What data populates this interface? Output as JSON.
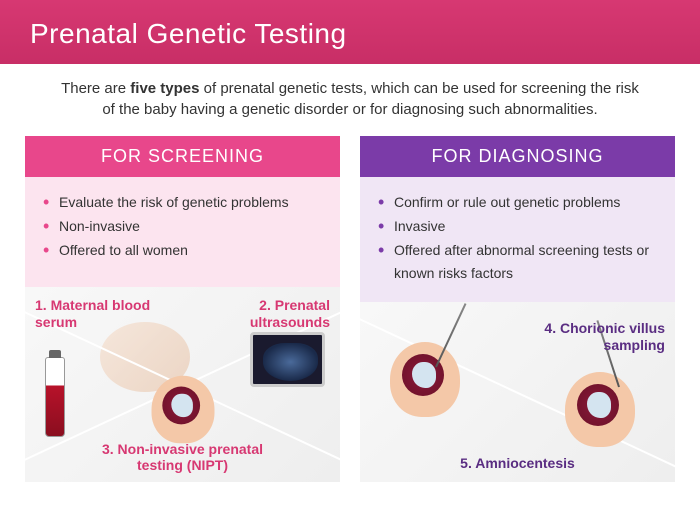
{
  "header": {
    "title": "Prenatal Genetic Testing"
  },
  "intro": {
    "pre": "There are ",
    "bold": "five types",
    "post": " of prenatal genetic tests, which can be used for screening the risk of the baby having a genetic disorder or for diagnosing such abnormalities."
  },
  "screening": {
    "header": "FOR SCREENING",
    "bullets": [
      "Evaluate the risk of genetic problems",
      "Non-invasive",
      "Offered to all women"
    ],
    "items": {
      "1": "1. Maternal blood serum",
      "2": "2. Prenatal ultrasounds",
      "3": "3. Non-invasive prenatal testing (NIPT)"
    }
  },
  "diagnosing": {
    "header": "FOR DIAGNOSING",
    "bullets": [
      "Confirm or rule out genetic problems",
      "Invasive",
      "Offered after abnormal screening tests or known risks factors"
    ],
    "items": {
      "4": "4. Chorionic villus sampling",
      "5": "5. Amniocentesis"
    }
  },
  "colors": {
    "screening_primary": "#e8478b",
    "screening_bg": "#fce4ef",
    "diagnosing_primary": "#7b3ba8",
    "diagnosing_bg": "#f0e6f5",
    "header_gradient_start": "#d73872",
    "header_gradient_end": "#c82e66"
  }
}
